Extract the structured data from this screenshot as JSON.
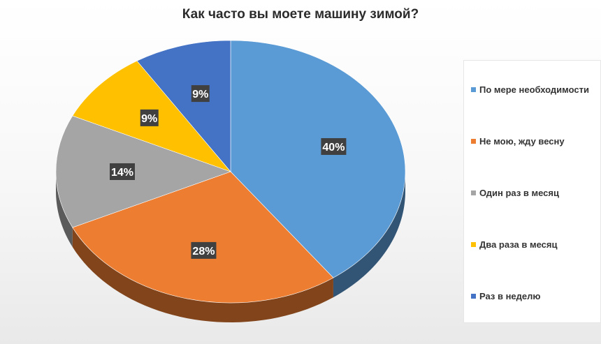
{
  "chart_data": {
    "type": "pie",
    "title": "Как часто вы моете машину зимой?",
    "categories": [
      "По мере необходимости",
      "Не мою, жду весну",
      "Один раз в месяц",
      "Два раза в месяц",
      "Раз в неделю"
    ],
    "values": [
      40,
      28,
      14,
      9,
      9
    ],
    "data_labels": [
      "40%",
      "28%",
      "14%",
      "9%",
      "9%"
    ],
    "colors": [
      "#5b9bd5",
      "#ed7d31",
      "#a5a5a5",
      "#ffc000",
      "#4472c4"
    ],
    "style": "3d-tilted",
    "legend_position": "right"
  },
  "legend": {
    "items": [
      {
        "label": "По мере необходимости",
        "color": "#5b9bd5"
      },
      {
        "label": "Не мою, жду весну",
        "color": "#ed7d31"
      },
      {
        "label": "Один раз в месяц",
        "color": "#a5a5a5"
      },
      {
        "label": "Два раза в месяц",
        "color": "#ffc000"
      },
      {
        "label": "Раз в неделю",
        "color": "#4472c4"
      }
    ]
  },
  "data_label_style": {
    "background": "#404040",
    "text_color": "#ffffff"
  }
}
